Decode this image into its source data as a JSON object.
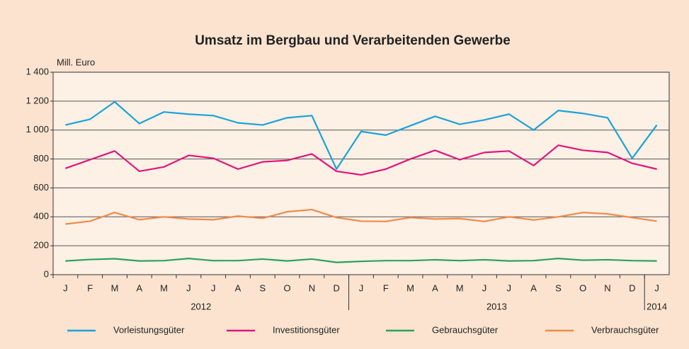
{
  "chart_data": {
    "type": "line",
    "title": "Umsatz im Bergbau und Verarbeitenden Gewerbe",
    "y_label": "Mill. Euro",
    "categories": [
      "J",
      "F",
      "M",
      "A",
      "M",
      "J",
      "J",
      "A",
      "S",
      "O",
      "N",
      "D",
      "J",
      "F",
      "M",
      "A",
      "M",
      "J",
      "J",
      "A",
      "S",
      "O",
      "N",
      "D",
      "J"
    ],
    "x_groups": [
      {
        "label": "2012",
        "count": 12
      },
      {
        "label": "2013",
        "count": 12
      },
      {
        "label": "2014",
        "count": 1
      }
    ],
    "series": [
      {
        "name": "Vorleistungsgüter",
        "color": "#1ba3d9",
        "values": [
          1035,
          1075,
          1195,
          1045,
          1125,
          1110,
          1100,
          1050,
          1035,
          1085,
          1100,
          730,
          990,
          965,
          1030,
          1095,
          1040,
          1070,
          1110,
          1000,
          1135,
          1115,
          1085,
          805,
          1035
        ]
      },
      {
        "name": "Investitionsgüter",
        "color": "#e0157f",
        "values": [
          735,
          795,
          855,
          715,
          745,
          825,
          805,
          730,
          780,
          790,
          835,
          715,
          690,
          730,
          800,
          860,
          795,
          845,
          855,
          755,
          895,
          860,
          845,
          770,
          730
        ]
      },
      {
        "name": "Gebrauchsgüter",
        "color": "#2aa35a",
        "values": [
          95,
          105,
          110,
          95,
          97,
          112,
          97,
          97,
          108,
          95,
          108,
          85,
          92,
          97,
          97,
          103,
          97,
          103,
          95,
          97,
          112,
          100,
          103,
          97,
          95
        ]
      },
      {
        "name": "Verbrauchsgüter",
        "color": "#f08a4b",
        "values": [
          350,
          370,
          430,
          380,
          400,
          385,
          380,
          405,
          390,
          435,
          450,
          395,
          370,
          368,
          395,
          385,
          388,
          368,
          400,
          378,
          400,
          430,
          420,
          395,
          370
        ]
      }
    ],
    "ylim": [
      0,
      1400
    ],
    "yticks": [
      0,
      200,
      400,
      600,
      800,
      {
        "value": 1000,
        "label": "1 000"
      },
      {
        "value": 1200,
        "label": "1 200"
      },
      {
        "value": 1400,
        "label": "1 400"
      }
    ],
    "grid": true
  }
}
